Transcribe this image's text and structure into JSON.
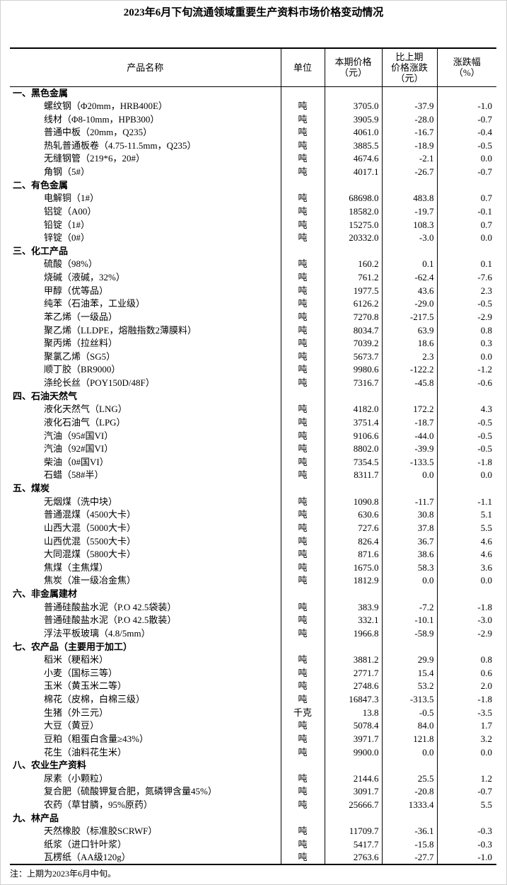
{
  "title": "2023年6月下旬流通领域重要生产资料市场价格变动情况",
  "headers": {
    "name": "产品名称",
    "unit": "单位",
    "price_1": "本期价格",
    "price_2": "（元）",
    "change_1": "比上期",
    "change_2": "价格涨跌",
    "change_3": "（元）",
    "pct_1": "涨跌幅",
    "pct_2": "（%）"
  },
  "sections": [
    {
      "category": "一、黑色金属",
      "items": [
        [
          "螺纹钢（Φ20mm，HRB400E）",
          "吨",
          "3705.0",
          "-37.9",
          "-1.0"
        ],
        [
          "线材（Φ8-10mm，HPB300）",
          "吨",
          "3905.9",
          "-28.0",
          "-0.7"
        ],
        [
          "普通中板（20mm，Q235）",
          "吨",
          "4061.0",
          "-16.7",
          "-0.4"
        ],
        [
          "热轧普通板卷（4.75-11.5mm，Q235）",
          "吨",
          "3885.5",
          "-18.9",
          "-0.5"
        ],
        [
          "无缝钢管（219*6，20#）",
          "吨",
          "4674.6",
          "-2.1",
          "0.0"
        ],
        [
          "角钢（5#）",
          "吨",
          "4017.1",
          "-26.7",
          "-0.7"
        ]
      ]
    },
    {
      "category": "二、有色金属",
      "items": [
        [
          "电解铜（1#）",
          "吨",
          "68698.0",
          "483.8",
          "0.7"
        ],
        [
          "铝锭（A00）",
          "吨",
          "18582.0",
          "-19.7",
          "-0.1"
        ],
        [
          "铅锭（1#）",
          "吨",
          "15275.0",
          "108.3",
          "0.7"
        ],
        [
          "锌锭（0#）",
          "吨",
          "20332.0",
          "-3.0",
          "0.0"
        ]
      ]
    },
    {
      "category": "三、化工产品",
      "items": [
        [
          "硫酸（98%）",
          "吨",
          "160.2",
          "0.1",
          "0.1"
        ],
        [
          "烧碱（液碱，32%）",
          "吨",
          "761.2",
          "-62.4",
          "-7.6"
        ],
        [
          "甲醇（优等品）",
          "吨",
          "1977.5",
          "43.6",
          "2.3"
        ],
        [
          "纯苯（石油苯，工业级）",
          "吨",
          "6126.2",
          "-29.0",
          "-0.5"
        ],
        [
          "苯乙烯（一级品）",
          "吨",
          "7270.8",
          "-217.5",
          "-2.9"
        ],
        [
          "聚乙烯（LLDPE，熔融指数2薄膜料）",
          "吨",
          "8034.7",
          "63.9",
          "0.8"
        ],
        [
          "聚丙烯（拉丝料）",
          "吨",
          "7039.2",
          "18.6",
          "0.3"
        ],
        [
          "聚氯乙烯（SG5）",
          "吨",
          "5673.7",
          "2.3",
          "0.0"
        ],
        [
          "顺丁胶（BR9000）",
          "吨",
          "9980.6",
          "-122.2",
          "-1.2"
        ],
        [
          "涤纶长丝（POY150D/48F）",
          "吨",
          "7316.7",
          "-45.8",
          "-0.6"
        ]
      ]
    },
    {
      "category": "四、石油天然气",
      "items": [
        [
          "液化天然气（LNG）",
          "吨",
          "4182.0",
          "172.2",
          "4.3"
        ],
        [
          "液化石油气（LPG）",
          "吨",
          "3751.4",
          "-18.7",
          "-0.5"
        ],
        [
          "汽油（95#国VI）",
          "吨",
          "9106.6",
          "-44.0",
          "-0.5"
        ],
        [
          "汽油（92#国VI）",
          "吨",
          "8802.0",
          "-39.9",
          "-0.5"
        ],
        [
          "柴油（0#国VI）",
          "吨",
          "7354.5",
          "-133.5",
          "-1.8"
        ],
        [
          "石蜡（58#半）",
          "吨",
          "8311.7",
          "0.0",
          "0.0"
        ]
      ]
    },
    {
      "category": "五、煤炭",
      "items": [
        [
          "无烟煤（洗中块）",
          "吨",
          "1090.8",
          "-11.7",
          "-1.1"
        ],
        [
          "普通混煤（4500大卡）",
          "吨",
          "630.6",
          "30.8",
          "5.1"
        ],
        [
          "山西大混（5000大卡）",
          "吨",
          "727.6",
          "37.8",
          "5.5"
        ],
        [
          "山西优混（5500大卡）",
          "吨",
          "826.4",
          "36.7",
          "4.6"
        ],
        [
          "大同混煤（5800大卡）",
          "吨",
          "871.6",
          "38.6",
          "4.6"
        ],
        [
          "焦煤（主焦煤）",
          "吨",
          "1675.0",
          "58.3",
          "3.6"
        ],
        [
          "焦炭（准一级冶金焦）",
          "吨",
          "1812.9",
          "0.0",
          "0.0"
        ]
      ]
    },
    {
      "category": "六、非金属建材",
      "items": [
        [
          "普通硅酸盐水泥（P.O 42.5袋装）",
          "吨",
          "383.9",
          "-7.2",
          "-1.8"
        ],
        [
          "普通硅酸盐水泥（P.O 42.5散装）",
          "吨",
          "332.1",
          "-10.1",
          "-3.0"
        ],
        [
          "浮法平板玻璃（4.8/5mm）",
          "吨",
          "1966.8",
          "-58.9",
          "-2.9"
        ]
      ]
    },
    {
      "category": "七、农产品（主要用于加工）",
      "items": [
        [
          "稻米（粳稻米）",
          "吨",
          "3881.2",
          "29.9",
          "0.8"
        ],
        [
          "小麦（国标三等）",
          "吨",
          "2771.7",
          "15.4",
          "0.6"
        ],
        [
          "玉米（黄玉米二等）",
          "吨",
          "2748.6",
          "53.2",
          "2.0"
        ],
        [
          "棉花（皮棉，白棉三级）",
          "吨",
          "16847.3",
          "-313.5",
          "-1.8"
        ],
        [
          "生猪（外三元）",
          "千克",
          "13.8",
          "-0.5",
          "-3.5"
        ],
        [
          "大豆（黄豆）",
          "吨",
          "5078.4",
          "84.0",
          "1.7"
        ],
        [
          "豆粕（粗蛋白含量≥43%）",
          "吨",
          "3971.7",
          "121.8",
          "3.2"
        ],
        [
          "花生（油料花生米）",
          "吨",
          "9900.0",
          "0.0",
          "0.0"
        ]
      ]
    },
    {
      "category": "八、农业生产资料",
      "items": [
        [
          "尿素（小颗粒）",
          "吨",
          "2144.6",
          "25.5",
          "1.2"
        ],
        [
          "复合肥（硫酸钾复合肥，氮磷钾含量45%）",
          "吨",
          "3091.7",
          "-20.8",
          "-0.7"
        ],
        [
          "农药（草甘膦，95%原药）",
          "吨",
          "25666.7",
          "1333.4",
          "5.5"
        ]
      ]
    },
    {
      "category": "九、林产品",
      "items": [
        [
          "天然橡胶（标准胶SCRWF）",
          "吨",
          "11709.7",
          "-36.1",
          "-0.3"
        ],
        [
          "纸浆（进口针叶浆）",
          "吨",
          "5417.7",
          "-15.8",
          "-0.3"
        ],
        [
          "瓦楞纸（AA级120g）",
          "吨",
          "2763.6",
          "-27.7",
          "-1.0"
        ]
      ]
    }
  ],
  "note": "注：上期为2023年6月中旬。"
}
